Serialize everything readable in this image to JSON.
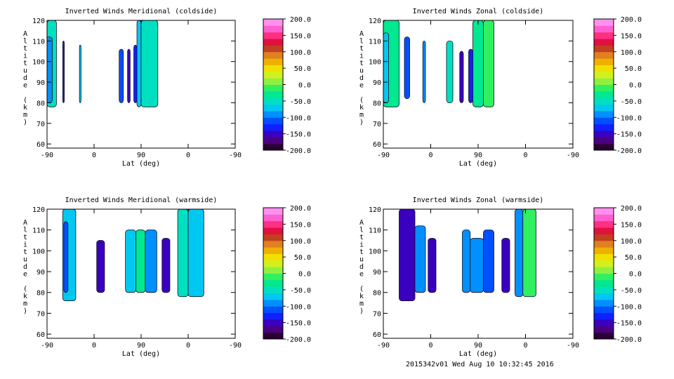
{
  "colorbar": {
    "tick_labels": [
      "200.0",
      "150.0",
      "100.0",
      "50.0",
      "0.0",
      "-50.0",
      "-100.0",
      "-150.0",
      "-200.0"
    ],
    "range": [
      -200,
      200
    ],
    "colors": [
      "#2a0033",
      "#4b0082",
      "#3a00c0",
      "#1020ff",
      "#0050ff",
      "#0090ff",
      "#00c8f0",
      "#00e0c0",
      "#00e890",
      "#30f060",
      "#90f040",
      "#d0f020",
      "#f0e000",
      "#f0b000",
      "#e08020",
      "#c04020",
      "#e01040",
      "#ff3080",
      "#ff60d0",
      "#ff90f0"
    ]
  },
  "footer": "2015342v01 Wed Aug 10 10:32:45 2016",
  "chart_data": [
    {
      "type": "heatmap",
      "title": "Inverted Winds Meridional (coldside)",
      "xlabel": "Lat (deg)",
      "ylabel": "Altitude (km)",
      "x_tick_labels": [
        "-90",
        "0",
        "90",
        "0",
        "-90"
      ],
      "y_ticks": [
        60,
        70,
        80,
        90,
        100,
        110,
        120
      ],
      "ylim": [
        58,
        120
      ],
      "grid": false,
      "regions": [
        {
          "x": [
            -90,
            -72
          ],
          "y": [
            78,
            120
          ],
          "value": -60
        },
        {
          "x": [
            -92,
            -80
          ],
          "y": [
            80,
            112
          ],
          "value": -90
        },
        {
          "x": [
            -60,
            -57
          ],
          "y": [
            80,
            110
          ],
          "value": -140
        },
        {
          "x": [
            -28,
            -25
          ],
          "y": [
            80,
            108
          ],
          "value": -80
        },
        {
          "x": [
            48,
            56
          ],
          "y": [
            80,
            106
          ],
          "value": -110
        },
        {
          "x": [
            64,
            69
          ],
          "y": [
            80,
            106
          ],
          "value": -150
        },
        {
          "x": [
            76,
            82
          ],
          "y": [
            80,
            108
          ],
          "value": -140
        },
        {
          "x": [
            82,
            90
          ],
          "y": [
            78,
            120
          ],
          "value": -70
        },
        {
          "x": [
            90,
            122
          ],
          "y": [
            78,
            120
          ],
          "value": -60
        }
      ]
    },
    {
      "type": "heatmap",
      "title": "Inverted Winds Zonal (coldside)",
      "xlabel": "Lat (deg)",
      "ylabel": "Altitude (km)",
      "x_tick_labels": [
        "-90",
        "0",
        "90",
        "0",
        "-90"
      ],
      "y_ticks": [
        60,
        70,
        80,
        90,
        100,
        110,
        120
      ],
      "ylim": [
        58,
        120
      ],
      "grid": false,
      "regions": [
        {
          "x": [
            -90,
            -60
          ],
          "y": [
            78,
            120
          ],
          "value": -40
        },
        {
          "x": [
            -90,
            -80
          ],
          "y": [
            80,
            114
          ],
          "value": -80
        },
        {
          "x": [
            -50,
            -40
          ],
          "y": [
            82,
            112
          ],
          "value": -110
        },
        {
          "x": [
            -15,
            -10
          ],
          "y": [
            80,
            110
          ],
          "value": -90
        },
        {
          "x": [
            30,
            42
          ],
          "y": [
            80,
            110
          ],
          "value": -60
        },
        {
          "x": [
            55,
            62
          ],
          "y": [
            80,
            105
          ],
          "value": -150
        },
        {
          "x": [
            72,
            80
          ],
          "y": [
            80,
            106
          ],
          "value": -140
        },
        {
          "x": [
            80,
            100
          ],
          "y": [
            78,
            120
          ],
          "value": -40
        },
        {
          "x": [
            100,
            120
          ],
          "y": [
            78,
            120
          ],
          "value": -20
        }
      ]
    },
    {
      "type": "heatmap",
      "title": "Inverted Winds Meridional (warmside)",
      "xlabel": "Lat (deg)",
      "ylabel": "Altitude (km)",
      "x_tick_labels": [
        "-90",
        "0",
        "90",
        "0",
        "-90"
      ],
      "y_ticks": [
        60,
        70,
        80,
        90,
        100,
        110,
        120
      ],
      "ylim": [
        58,
        120
      ],
      "grid": false,
      "regions": [
        {
          "x": [
            -60,
            -35
          ],
          "y": [
            76,
            120
          ],
          "value": -70
        },
        {
          "x": [
            -58,
            -50
          ],
          "y": [
            80,
            114
          ],
          "value": -110
        },
        {
          "x": [
            5,
            20
          ],
          "y": [
            80,
            105
          ],
          "value": -150
        },
        {
          "x": [
            60,
            80
          ],
          "y": [
            80,
            110
          ],
          "value": -80
        },
        {
          "x": [
            80,
            98
          ],
          "y": [
            80,
            110
          ],
          "value": -40
        },
        {
          "x": [
            98,
            120
          ],
          "y": [
            80,
            110
          ],
          "value": -90
        },
        {
          "x": [
            130,
            145
          ],
          "y": [
            80,
            106
          ],
          "value": -150
        },
        {
          "x": [
            160,
            180
          ],
          "y": [
            78,
            120
          ],
          "value": -60
        },
        {
          "x": [
            180,
            210
          ],
          "y": [
            78,
            120
          ],
          "value": -80
        }
      ]
    },
    {
      "type": "heatmap",
      "title": "Inverted Winds Zonal (warmside)",
      "xlabel": "Lat (deg)",
      "ylabel": "Altitude (km)",
      "x_tick_labels": [
        "-90",
        "0",
        "90",
        "0",
        "-90"
      ],
      "y_ticks": [
        60,
        70,
        80,
        90,
        100,
        110,
        120
      ],
      "ylim": [
        58,
        120
      ],
      "grid": false,
      "regions": [
        {
          "x": [
            -60,
            -30
          ],
          "y": [
            76,
            120
          ],
          "value": -150
        },
        {
          "x": [
            -30,
            -10
          ],
          "y": [
            80,
            112
          ],
          "value": -100
        },
        {
          "x": [
            -5,
            10
          ],
          "y": [
            80,
            106
          ],
          "value": -150
        },
        {
          "x": [
            60,
            75
          ],
          "y": [
            80,
            110
          ],
          "value": -90
        },
        {
          "x": [
            75,
            100
          ],
          "y": [
            80,
            106
          ],
          "value": -100
        },
        {
          "x": [
            100,
            120
          ],
          "y": [
            80,
            110
          ],
          "value": -120
        },
        {
          "x": [
            135,
            150
          ],
          "y": [
            80,
            106
          ],
          "value": -160
        },
        {
          "x": [
            160,
            175
          ],
          "y": [
            78,
            120
          ],
          "value": -100
        },
        {
          "x": [
            175,
            200
          ],
          "y": [
            78,
            120
          ],
          "value": -20
        }
      ]
    }
  ]
}
